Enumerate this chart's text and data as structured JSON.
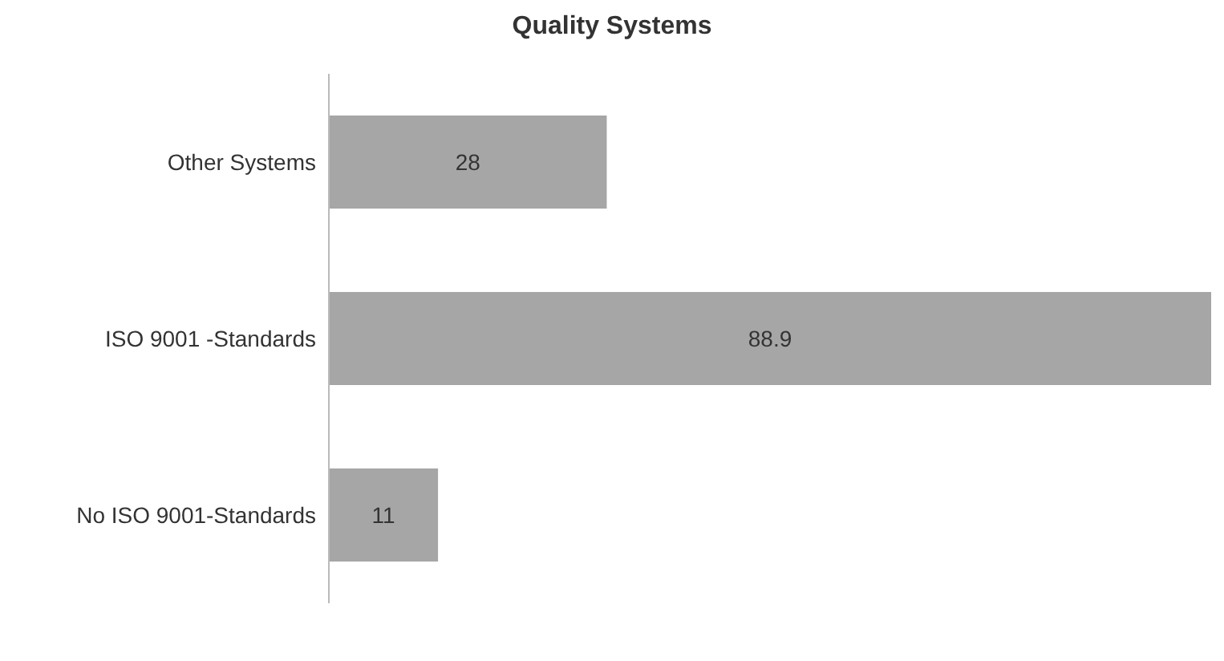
{
  "chart_data": {
    "type": "bar",
    "orientation": "horizontal",
    "title": "Quality Systems",
    "categories": [
      "Other Systems",
      "ISO 9001 -Standards",
      "No ISO 9001-Standards"
    ],
    "values": [
      28,
      88.9,
      11
    ],
    "color": "#a6a6a6",
    "data_labels": true
  }
}
